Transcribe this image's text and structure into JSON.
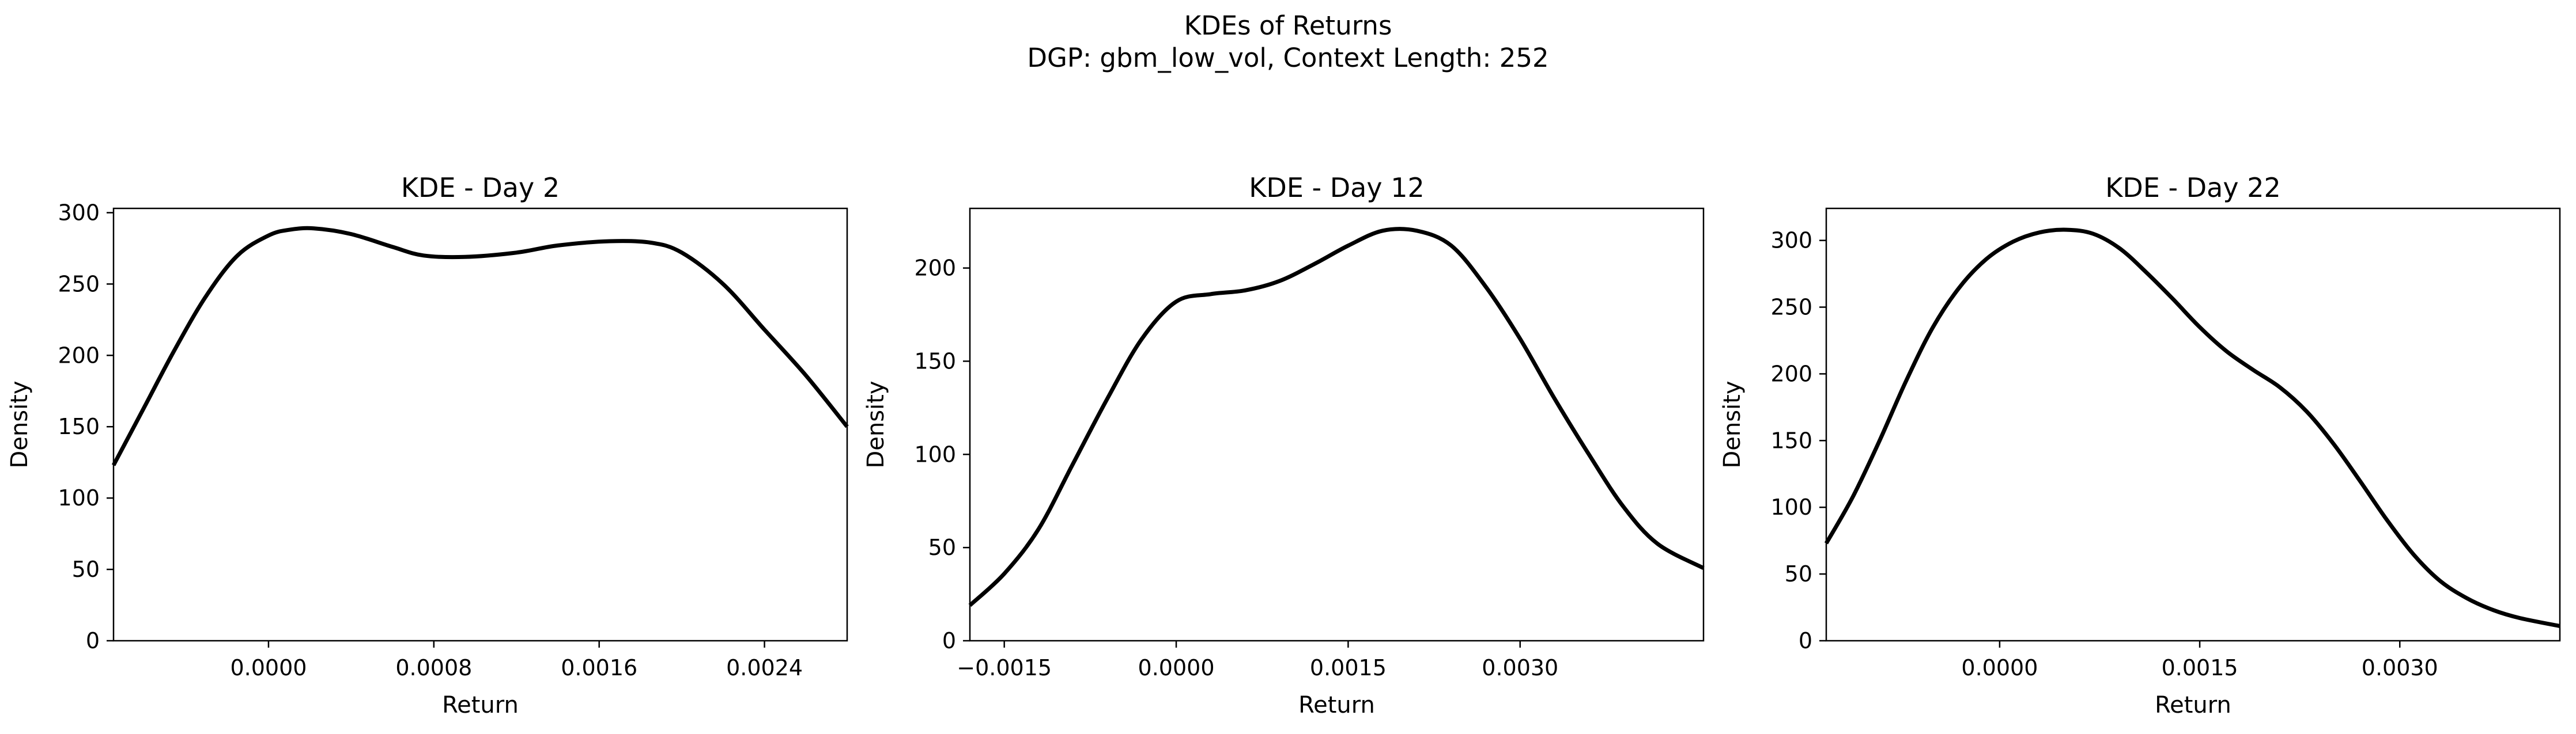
{
  "figure": {
    "title_line1": "KDEs of Returns",
    "title_line2": "DGP: gbm_low_vol, Context Length: 252"
  },
  "colors": {
    "line": "#000000",
    "axes": "#000000",
    "background": "#ffffff"
  },
  "chart_data": [
    {
      "type": "line",
      "title": "KDE - Day 2",
      "xlabel": "Return",
      "ylabel": "Density",
      "xlim": [
        -0.00075,
        0.0028
      ],
      "ylim": [
        0,
        303
      ],
      "xticks": [
        0.0,
        0.0008,
        0.0016,
        0.0024
      ],
      "xtick_labels": [
        "0.0000",
        "0.0008",
        "0.0016",
        "0.0024"
      ],
      "yticks": [
        0,
        50,
        100,
        150,
        200,
        250,
        300
      ],
      "ytick_labels": [
        "0",
        "50",
        "100",
        "150",
        "200",
        "250",
        "300"
      ],
      "grid": false,
      "series": [
        {
          "x": [
            -0.00075,
            -0.0006,
            -0.00045,
            -0.0003,
            -0.00015,
            0.0,
            0.0001,
            0.00022,
            0.0004,
            0.0006,
            0.00075,
            0.00095,
            0.0012,
            0.0014,
            0.00165,
            0.00185,
            0.002,
            0.0022,
            0.0024,
            0.0026,
            0.0028
          ],
          "y": [
            123,
            164,
            205,
            242,
            270,
            284,
            288,
            289,
            285,
            276,
            270,
            269,
            272,
            277,
            280,
            279,
            272,
            250,
            218,
            186,
            150
          ]
        }
      ]
    },
    {
      "type": "line",
      "title": "KDE - Day 12",
      "xlabel": "Return",
      "ylabel": "Density",
      "xlim": [
        -0.0018,
        0.0046
      ],
      "ylim": [
        0,
        232
      ],
      "xticks": [
        -0.0015,
        0.0,
        0.0015,
        0.003
      ],
      "xtick_labels": [
        "−0.0015",
        "0.0000",
        "0.0015",
        "0.0030"
      ],
      "yticks": [
        0,
        50,
        100,
        150,
        200
      ],
      "ytick_labels": [
        "0",
        "50",
        "100",
        "150",
        "200"
      ],
      "grid": false,
      "series": [
        {
          "x": [
            -0.0018,
            -0.0015,
            -0.0012,
            -0.0009,
            -0.0006,
            -0.0003,
            0.0,
            0.0003,
            0.0006,
            0.0009,
            0.0012,
            0.0015,
            0.0018,
            0.0021,
            0.0024,
            0.0027,
            0.003,
            0.0033,
            0.0036,
            0.0039,
            0.0042,
            0.0046
          ],
          "y": [
            19,
            36,
            60,
            95,
            130,
            162,
            182,
            186,
            188,
            193,
            202,
            212,
            220,
            220,
            212,
            190,
            162,
            130,
            100,
            72,
            52,
            39
          ]
        }
      ]
    },
    {
      "type": "line",
      "title": "KDE - Day 22",
      "xlabel": "Return",
      "ylabel": "Density",
      "xlim": [
        -0.0013,
        0.0042
      ],
      "ylim": [
        0,
        324
      ],
      "xticks": [
        0.0,
        0.0015,
        0.003
      ],
      "xtick_labels": [
        "0.0000",
        "0.0015",
        "0.0030"
      ],
      "yticks": [
        0,
        50,
        100,
        150,
        200,
        250,
        300
      ],
      "ytick_labels": [
        "0",
        "50",
        "100",
        "150",
        "200",
        "250",
        "300"
      ],
      "grid": false,
      "series": [
        {
          "x": [
            -0.0013,
            -0.0011,
            -0.0009,
            -0.0007,
            -0.0005,
            -0.0003,
            -0.0001,
            0.0001,
            0.0003,
            0.0005,
            0.0007,
            0.0009,
            0.0011,
            0.0013,
            0.0015,
            0.0017,
            0.0019,
            0.0021,
            0.0023,
            0.0025,
            0.0027,
            0.0029,
            0.0031,
            0.0033,
            0.0035,
            0.0037,
            0.0039,
            0.0042
          ],
          "y": [
            73,
            108,
            150,
            195,
            235,
            265,
            286,
            299,
            306,
            308,
            305,
            294,
            276,
            256,
            235,
            217,
            203,
            190,
            172,
            148,
            120,
            91,
            65,
            45,
            32,
            23,
            17,
            11
          ]
        }
      ]
    }
  ]
}
